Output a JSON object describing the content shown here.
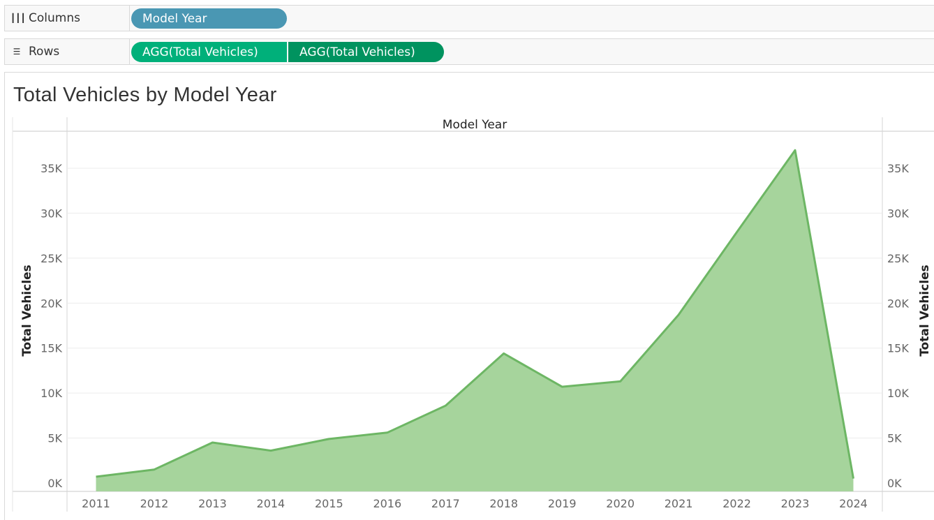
{
  "shelves": {
    "columns": {
      "label": "Columns",
      "icon": "columns-icon",
      "pills": [
        "Model Year"
      ]
    },
    "rows": {
      "label": "Rows",
      "icon": "rows-icon",
      "pills": [
        "AGG(Total Vehicles)",
        "AGG(Total Vehicles)"
      ]
    }
  },
  "colors": {
    "column_pill": "#4a97b3",
    "row_pill_1": "#00b07a",
    "row_pill_2": "#00935f",
    "area_fill": "#a6d49c",
    "area_line": "#6db664"
  },
  "chart_data": {
    "type": "area",
    "title": "Total Vehicles by Model Year",
    "xlabel": "Model Year",
    "ylabel": "Total Vehicles",
    "ylabel_right": "Total Vehicles",
    "categories": [
      "2011",
      "2012",
      "2013",
      "2014",
      "2015",
      "2016",
      "2017",
      "2018",
      "2019",
      "2020",
      "2021",
      "2022",
      "2023",
      "2024"
    ],
    "series": [
      {
        "values": [
          700,
          1500,
          4500,
          3600,
          4900,
          5600,
          8600,
          14400,
          10700,
          11300,
          18700,
          27900,
          37000,
          500
        ]
      }
    ],
    "ylim": [
      0,
      37000
    ],
    "yticks": [
      0,
      5000,
      10000,
      15000,
      20000,
      25000,
      30000,
      35000
    ],
    "ytick_labels": [
      "0K",
      "5K",
      "10K",
      "15K",
      "20K",
      "25K",
      "30K",
      "35K"
    ],
    "dual_axis": true,
    "grid": true
  }
}
